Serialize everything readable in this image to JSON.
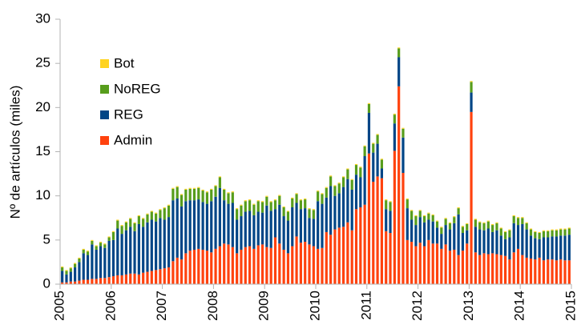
{
  "chart_data": {
    "type": "stacked_bar",
    "y_label": "Nº de artículos (miles)",
    "xlim": [
      2005,
      2015
    ],
    "xticks": [
      2005,
      2006,
      2007,
      2008,
      2009,
      2010,
      2011,
      2012,
      2013,
      2014,
      2015
    ],
    "ylim": [
      0,
      30
    ],
    "yticks": [
      0,
      5,
      10,
      15,
      20,
      25,
      30
    ],
    "grid": false,
    "legend": "upper left",
    "series": [
      {
        "name": "Admin",
        "color": "#ff420e",
        "values": [
          0.2,
          0.2,
          0.3,
          0.3,
          0.4,
          0.5,
          0.5,
          0.6,
          0.6,
          0.7,
          0.7,
          0.8,
          0.9,
          1.0,
          1.0,
          1.1,
          1.2,
          1.2,
          1.1,
          1.3,
          1.4,
          1.5,
          1.6,
          1.7,
          1.8,
          1.9,
          2.6,
          3.0,
          2.8,
          3.5,
          3.8,
          3.9,
          4.0,
          3.9,
          3.8,
          3.6,
          4.0,
          4.3,
          4.6,
          4.5,
          4.2,
          3.5,
          3.9,
          4.2,
          4.3,
          4.0,
          4.4,
          4.5,
          4.2,
          4.1,
          5.3,
          4.6,
          3.9,
          3.5,
          4.3,
          5.4,
          4.7,
          4.8,
          4.5,
          4.3,
          4.0,
          4.1,
          5.9,
          5.6,
          6.2,
          6.4,
          6.5,
          7.0,
          6.1,
          8.5,
          8.7,
          9.0,
          14.8,
          11.6,
          12.2,
          12.0,
          6.0,
          5.8,
          15.1,
          22.4,
          12.6,
          5.0,
          4.8,
          4.3,
          4.7,
          4.3,
          5.0,
          4.6,
          4.6,
          4.0,
          4.5,
          3.8,
          3.9,
          3.3,
          3.8,
          4.6,
          19.5,
          3.6,
          3.3,
          3.5,
          3.4,
          3.5,
          3.4,
          3.3,
          3.2,
          2.8,
          3.6,
          4.0,
          3.3,
          3.0,
          2.9,
          2.8,
          3.0,
          2.7,
          2.8,
          2.8,
          2.7,
          2.8,
          2.7,
          2.7
        ]
      },
      {
        "name": "REG",
        "color": "#004586",
        "values": [
          1.3,
          0.9,
          1.1,
          1.6,
          2.1,
          3.0,
          2.8,
          3.9,
          3.3,
          3.6,
          3.4,
          4.1,
          4.1,
          5.3,
          4.7,
          5.0,
          5.3,
          4.8,
          5.7,
          5.2,
          5.6,
          5.8,
          5.5,
          5.8,
          5.5,
          5.7,
          6.9,
          6.7,
          6.0,
          5.9,
          5.7,
          5.6,
          5.6,
          5.4,
          5.3,
          5.8,
          5.9,
          6.6,
          4.9,
          4.6,
          5.0,
          3.8,
          3.8,
          4.0,
          4.0,
          3.8,
          3.8,
          3.6,
          4.7,
          4.2,
          3.2,
          4.4,
          3.8,
          3.7,
          4.4,
          3.8,
          3.8,
          3.8,
          3.0,
          3.1,
          5.4,
          5.0,
          3.9,
          5.5,
          3.8,
          3.9,
          4.5,
          4.9,
          4.6,
          3.9,
          3.4,
          5.5,
          4.6,
          3.3,
          3.7,
          1.1,
          2.5,
          2.5,
          3.1,
          3.3,
          4.0,
          3.6,
          2.5,
          2.4,
          2.9,
          2.7,
          2.3,
          2.5,
          1.8,
          1.7,
          2.2,
          2.4,
          3.0,
          4.6,
          2.0,
          1.5,
          2.2,
          2.9,
          2.9,
          2.6,
          2.9,
          2.4,
          2.7,
          2.2,
          1.9,
          2.5,
          3.3,
          2.7,
          3.5,
          3.2,
          2.6,
          2.4,
          2.1,
          2.6,
          2.5,
          2.6,
          2.7,
          2.7,
          2.8,
          2.9
        ]
      },
      {
        "name": "NoREG",
        "color": "#579d1c",
        "values": [
          0.4,
          0.4,
          0.4,
          0.4,
          0.4,
          0.4,
          0.4,
          0.4,
          0.4,
          0.4,
          0.4,
          0.4,
          0.9,
          0.9,
          0.9,
          0.9,
          0.9,
          0.9,
          0.9,
          0.9,
          0.9,
          0.9,
          0.9,
          0.9,
          1.3,
          1.3,
          1.3,
          1.3,
          1.3,
          1.3,
          1.3,
          1.3,
          1.3,
          1.3,
          1.3,
          1.3,
          1.2,
          1.2,
          1.2,
          1.2,
          1.2,
          1.2,
          1.2,
          1.2,
          1.2,
          1.2,
          1.2,
          1.2,
          1.0,
          1.0,
          1.0,
          1.0,
          1.0,
          1.0,
          1.0,
          1.0,
          1.0,
          1.0,
          1.0,
          1.0,
          1.1,
          1.1,
          1.1,
          1.1,
          1.1,
          1.1,
          1.1,
          1.1,
          1.1,
          1.1,
          1.1,
          1.1,
          1.0,
          1.0,
          1.0,
          1.0,
          1.0,
          1.0,
          1.0,
          1.0,
          1.0,
          1.0,
          1.0,
          1.0,
          0.7,
          0.7,
          0.7,
          0.7,
          0.7,
          0.7,
          0.7,
          0.7,
          0.7,
          0.7,
          0.7,
          0.7,
          1.2,
          0.8,
          0.8,
          0.8,
          0.8,
          0.8,
          0.8,
          0.8,
          0.8,
          0.8,
          0.8,
          0.8,
          0.7,
          0.7,
          0.7,
          0.7,
          0.7,
          0.7,
          0.7,
          0.7,
          0.7,
          0.7,
          0.7,
          0.7
        ]
      },
      {
        "name": "Bot",
        "color": "#ffd320",
        "values": [
          0.1,
          0.1,
          0.1,
          0.1,
          0.1,
          0.1,
          0.1,
          0.1,
          0.1,
          0.1,
          0.1,
          0.1,
          0.1,
          0.1,
          0.1,
          0.1,
          0.1,
          0.1,
          0.1,
          0.1,
          0.1,
          0.1,
          0.1,
          0.1,
          0.1,
          0.1,
          0.1,
          0.1,
          0.1,
          0.1,
          0.1,
          0.1,
          0.1,
          0.1,
          0.1,
          0.1,
          0.1,
          0.1,
          0.1,
          0.1,
          0.1,
          0.1,
          0.1,
          0.1,
          0.1,
          0.1,
          0.1,
          0.1,
          0.1,
          0.1,
          0.1,
          0.1,
          0.1,
          0.1,
          0.1,
          0.1,
          0.1,
          0.1,
          0.1,
          0.1,
          0.1,
          0.1,
          0.1,
          0.1,
          0.1,
          0.1,
          0.1,
          0.1,
          0.1,
          0.1,
          0.1,
          0.1,
          0.1,
          0.1,
          0.1,
          0.1,
          0.1,
          0.1,
          0.1,
          0.1,
          0.1,
          0.1,
          0.1,
          0.1,
          0.1,
          0.1,
          0.1,
          0.1,
          0.1,
          0.1,
          0.1,
          0.1,
          0.1,
          0.1,
          0.1,
          0.1,
          0.1,
          0.1,
          0.1,
          0.1,
          0.1,
          0.1,
          0.1,
          0.1,
          0.1,
          0.1,
          0.1,
          0.1,
          0.1,
          0.1,
          0.1,
          0.1,
          0.1,
          0.1,
          0.1,
          0.1,
          0.1,
          0.1,
          0.1,
          0.1
        ]
      }
    ]
  }
}
